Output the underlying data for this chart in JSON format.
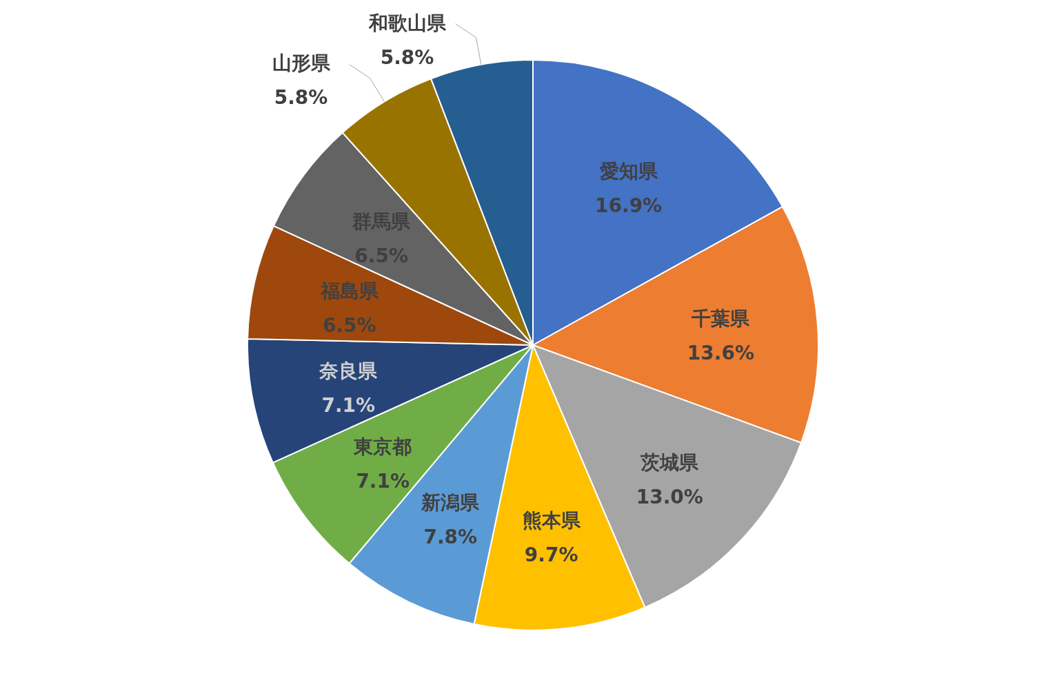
{
  "chart_data": {
    "type": "pie",
    "categories": [
      "愛知県",
      "千葉県",
      "茨城県",
      "熊本県",
      "新潟県",
      "東京都",
      "奈良県",
      "福島県",
      "群馬県",
      "山形県",
      "和歌山県"
    ],
    "values": [
      16.9,
      13.6,
      13.0,
      9.7,
      7.8,
      7.1,
      7.1,
      6.5,
      6.5,
      5.8,
      5.8
    ],
    "colors": [
      "#4472c4",
      "#ed7d31",
      "#a5a5a5",
      "#ffc000",
      "#5b9bd5",
      "#70ad47",
      "#264478",
      "#9e480e",
      "#636363",
      "#997300",
      "#255e91"
    ],
    "value_labels": [
      "16.9%",
      "13.6%",
      "13.0%",
      "9.7%",
      "7.8%",
      "7.1%",
      "7.1%",
      "6.5%",
      "6.5%",
      "5.8%",
      "5.8%"
    ],
    "legend": false
  }
}
